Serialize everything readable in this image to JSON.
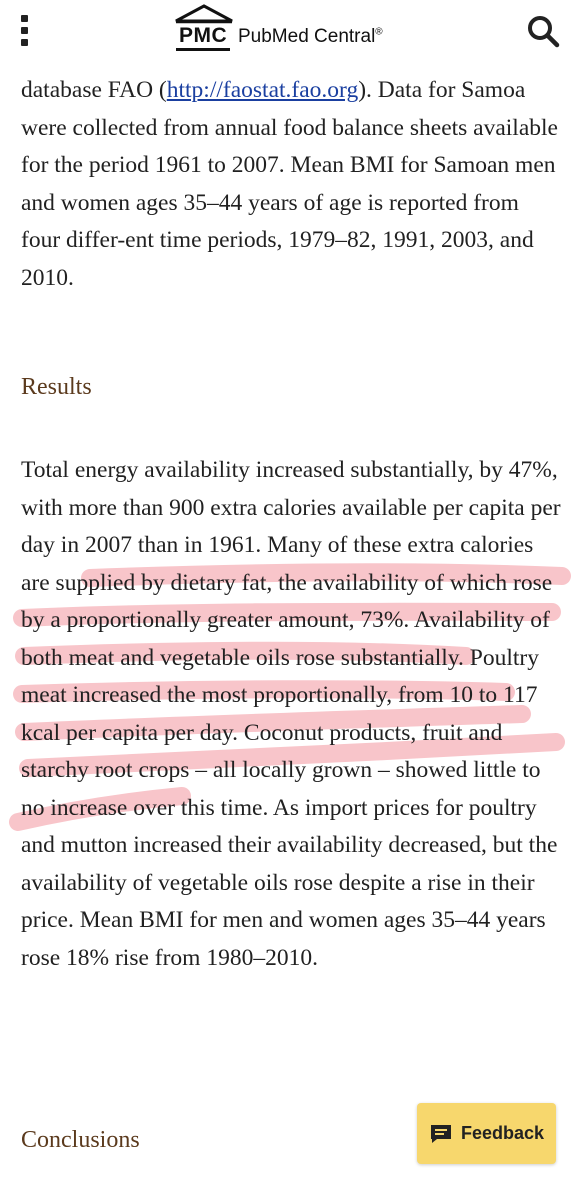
{
  "header": {
    "logo_abbr": "PMC",
    "logo_name": "PubMed Central",
    "logo_mark": "®",
    "menu_icon": "vertical-dots-icon",
    "search_icon": "search-icon"
  },
  "article": {
    "p1_before_link": "database FAO (",
    "p1_link": "http://faostat.fao.org",
    "p1_after_link": "). Data for Samoa were collected from annual food balance sheets available for the period 1961 to 2007. Mean BMI for Samoan men and women ages 35–44 years of age is reported from four differ-ent time periods, 1979–82, 1991, 2003, and 2010.",
    "results_heading": "Results",
    "results_text": "Total energy availability increased substantially, by 47%, with more than 900 extra calories available per capita per day in 2007 than in 1961. Many of these extra calories are supplied by dietary fat, the availability of which rose by a proportionally greater amount, 73%. Availability of both meat and vegetable oils rose substantially. Poultry meat increased the most proportionally, from 10 to 117 kcal per capita per day. Coconut products, fruit and starchy root crops – all locally grown – showed little to no increase over this time. As import prices for poultry and mutton increased their availability decreased, but the availability of vegetable oils rose despite a rise in their price. Mean BMI for men and women ages 35–44 years rose 18% rise from 1980–2010.",
    "conclusions_heading": "Conclusions"
  },
  "feedback": {
    "label": "Feedback",
    "icon": "chat-bubble-icon",
    "color": "#f7d76d"
  },
  "highlight_color": "#f7b7bd"
}
